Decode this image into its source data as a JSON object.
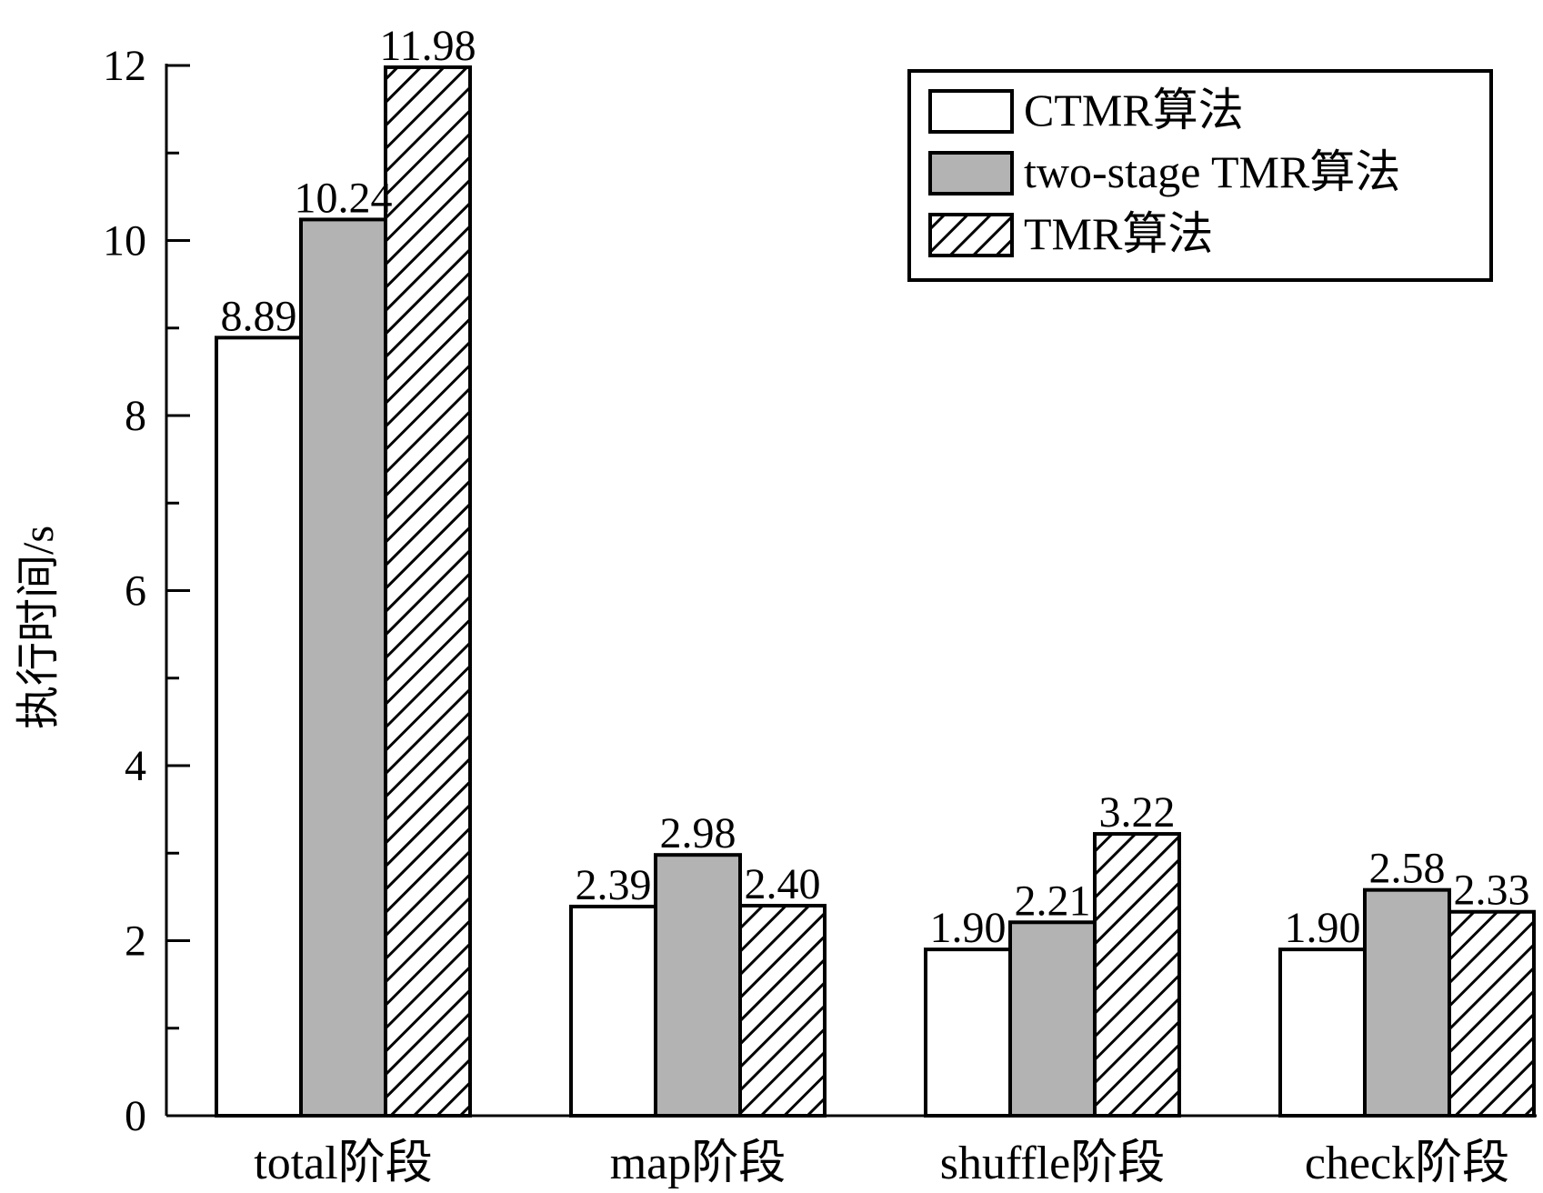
{
  "chart_data": {
    "type": "bar",
    "title": "",
    "xlabel": "",
    "ylabel": "执行时间/s",
    "ylim": [
      0,
      12
    ],
    "yticks": [
      0,
      2,
      4,
      6,
      8,
      10,
      12
    ],
    "grid": false,
    "legend_position": "top-right",
    "categories": [
      "total阶段",
      "map阶段",
      "shuffle阶段",
      "check阶段"
    ],
    "series": [
      {
        "name": "CTMR算法",
        "values": [
          8.89,
          2.39,
          1.9,
          1.9
        ],
        "labels": [
          "8.89",
          "2.39",
          "1.90",
          "1.90"
        ],
        "fill": "#ffffff",
        "pattern": "none"
      },
      {
        "name": "two-stage TMR算法",
        "values": [
          10.24,
          2.98,
          2.21,
          2.58
        ],
        "labels": [
          "10.24",
          "2.98",
          "2.21",
          "2.58"
        ],
        "fill": "#b3b3b3",
        "pattern": "none"
      },
      {
        "name": "TMR算法",
        "values": [
          11.98,
          2.4,
          3.22,
          2.33
        ],
        "labels": [
          "11.98",
          "2.40",
          "3.22",
          "2.33"
        ],
        "fill": "#ffffff",
        "pattern": "diagonal-hatch"
      }
    ]
  }
}
